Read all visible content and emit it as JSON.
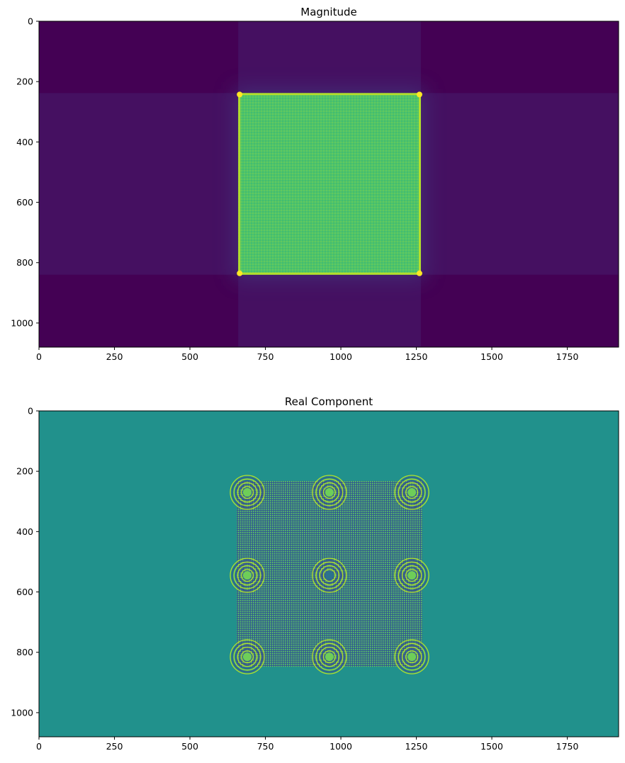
{
  "chart_data": [
    {
      "type": "heatmap",
      "title": "Magnitude",
      "xlim": [
        0,
        1920
      ],
      "ylim": [
        1080,
        0
      ],
      "xticks": [
        0,
        250,
        500,
        750,
        1000,
        1250,
        1500,
        1750
      ],
      "yticks": [
        0,
        200,
        400,
        600,
        800,
        1000
      ],
      "colormap": "viridis",
      "background_color": "#440154",
      "feature": {
        "shape": "bright square",
        "x_range": [
          660,
          1265
        ],
        "y_range": [
          238,
          840
        ],
        "fill_color": "#4fc36a",
        "edge_color": "#b4de2c",
        "corner_color": "#fde725"
      }
    },
    {
      "type": "heatmap",
      "title": "Real Component",
      "xlim": [
        0,
        1920
      ],
      "ylim": [
        1080,
        0
      ],
      "xticks": [
        0,
        250,
        500,
        750,
        1000,
        1250,
        1500,
        1750
      ],
      "yticks": [
        0,
        200,
        400,
        600,
        800,
        1000
      ],
      "colormap": "viridis",
      "background_color": "#21918c",
      "feature": {
        "shape": "interference square with ring patterns",
        "x_range": [
          655,
          1270
        ],
        "y_range": [
          232,
          848
        ],
        "ring_centers": [
          [
            690,
            270
          ],
          [
            962,
            270
          ],
          [
            1235,
            270
          ],
          [
            690,
            545
          ],
          [
            962,
            545
          ],
          [
            1235,
            545
          ],
          [
            690,
            815
          ],
          [
            962,
            815
          ],
          [
            1235,
            815
          ]
        ],
        "dark_color": "#3b528b",
        "bright_color": "#6ece58",
        "highlight_color": "#b5de2b"
      }
    }
  ]
}
